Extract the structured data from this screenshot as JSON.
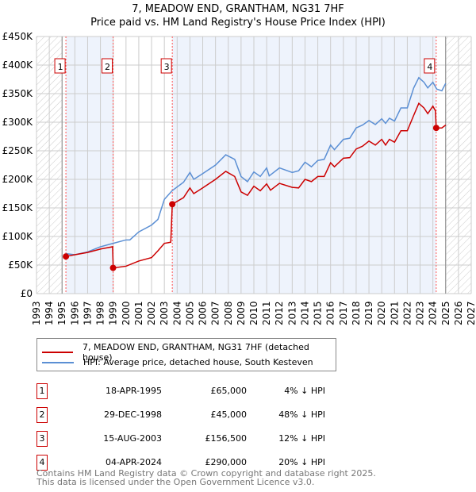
{
  "title": "7, MEADOW END, GRANTHAM, NG31 7HF",
  "subtitle": "Price paid vs. HM Land Registry's House Price Index (HPI)",
  "chart_data": {
    "type": "line",
    "ylim": [
      0,
      450000
    ],
    "xlim": [
      1993,
      2027
    ],
    "yticks": [
      0,
      50000,
      100000,
      150000,
      200000,
      250000,
      300000,
      350000,
      400000,
      450000
    ],
    "ytick_labels": [
      "£0",
      "£50K",
      "£100K",
      "£150K",
      "£200K",
      "£250K",
      "£300K",
      "£350K",
      "£400K",
      "£450K"
    ],
    "xticks": [
      1993,
      1994,
      1995,
      1996,
      1997,
      1998,
      1999,
      2000,
      2001,
      2002,
      2003,
      2004,
      2005,
      2006,
      2007,
      2008,
      2009,
      2010,
      2011,
      2012,
      2013,
      2014,
      2015,
      2016,
      2017,
      2018,
      2019,
      2020,
      2021,
      2022,
      2023,
      2024,
      2025,
      2026,
      2027
    ],
    "series": [
      {
        "name": "7, MEADOW END, GRANTHAM, NG31 7HF (detached house)",
        "color": "#cc0000",
        "x": [
          1995.3,
          1996,
          1997,
          1998,
          1998.95,
          1999,
          2000,
          2001,
          2002,
          2002.5,
          2003,
          2003.5,
          2003.62,
          2004.5,
          2005,
          2005.3,
          2006,
          2007,
          2007.8,
          2008.5,
          2009,
          2009.5,
          2010,
          2010.5,
          2011,
          2011.3,
          2012,
          2013,
          2013.5,
          2014,
          2014.5,
          2015,
          2015.5,
          2016,
          2016.3,
          2017,
          2017.5,
          2018,
          2018.5,
          2019,
          2019.5,
          2020,
          2020.3,
          2020.6,
          2021,
          2021.5,
          2022,
          2022.5,
          2022.9,
          2023.3,
          2023.6,
          2024,
          2024.2,
          2024.26,
          2024.7,
          2025
        ],
        "y": [
          65000,
          68000,
          72000,
          78000,
          82000,
          45000,
          48000,
          57000,
          63000,
          75000,
          88000,
          90000,
          156500,
          168000,
          185000,
          175000,
          185000,
          200000,
          214000,
          205000,
          178000,
          172000,
          188000,
          180000,
          192000,
          181000,
          193000,
          186000,
          185000,
          200000,
          196000,
          205000,
          205000,
          229000,
          222000,
          237000,
          238000,
          253000,
          258000,
          267000,
          260000,
          270000,
          260000,
          270000,
          265000,
          285000,
          285000,
          312000,
          333000,
          325000,
          315000,
          328000,
          320000,
          290000,
          290000,
          295000
        ]
      },
      {
        "name": "HPI: Average price, detached house, South Kesteven",
        "color": "#5b8fd4",
        "x": [
          1995.3,
          1996,
          1997,
          1998,
          1999,
          2000,
          2000.3,
          2001,
          2002,
          2002.5,
          2003,
          2003.6,
          2004.5,
          2005,
          2005.3,
          2006,
          2007,
          2007.8,
          2008.5,
          2009,
          2009.5,
          2010,
          2010.5,
          2011,
          2011.2,
          2012,
          2013,
          2013.5,
          2014,
          2014.5,
          2015,
          2015.5,
          2016,
          2016.3,
          2017,
          2017.5,
          2018,
          2018.5,
          2019,
          2019.5,
          2020,
          2020.3,
          2020.6,
          2021,
          2021.5,
          2022,
          2022.5,
          2022.9,
          2023.3,
          2023.6,
          2024,
          2024.3,
          2024.7,
          2025
        ],
        "y": [
          70000,
          68000,
          73000,
          82000,
          88000,
          94000,
          94000,
          108000,
          120000,
          130000,
          165000,
          180000,
          195000,
          212000,
          200000,
          210000,
          225000,
          243000,
          235000,
          205000,
          196000,
          213000,
          205000,
          220000,
          206000,
          220000,
          212000,
          215000,
          230000,
          222000,
          233000,
          235000,
          260000,
          252000,
          270000,
          272000,
          290000,
          295000,
          303000,
          296000,
          306000,
          298000,
          307000,
          302000,
          325000,
          325000,
          360000,
          378000,
          370000,
          360000,
          370000,
          358000,
          355000,
          368000
        ]
      }
    ],
    "sales": [
      {
        "n": "1",
        "x": 1995.3,
        "price": 65000,
        "date": "18-APR-1995",
        "price_label": "£65,000",
        "hpi": "4% ↓ HPI"
      },
      {
        "n": "2",
        "x": 1998.99,
        "price": 45000,
        "date": "29-DEC-1998",
        "price_label": "£45,000",
        "hpi": "48% ↓ HPI"
      },
      {
        "n": "3",
        "x": 2003.62,
        "price": 156500,
        "date": "15-AUG-2003",
        "price_label": "£156,500",
        "hpi": "12% ↓ HPI"
      },
      {
        "n": "4",
        "x": 2024.26,
        "price": 290000,
        "date": "04-APR-2024",
        "price_label": "£290,000",
        "hpi": "20% ↓ HPI"
      }
    ],
    "data_bounds": [
      1995.0,
      2025.0
    ]
  },
  "footer": [
    "Contains HM Land Registry data © Crown copyright and database right 2025.",
    "This data is licensed under the Open Government Licence v3.0."
  ]
}
